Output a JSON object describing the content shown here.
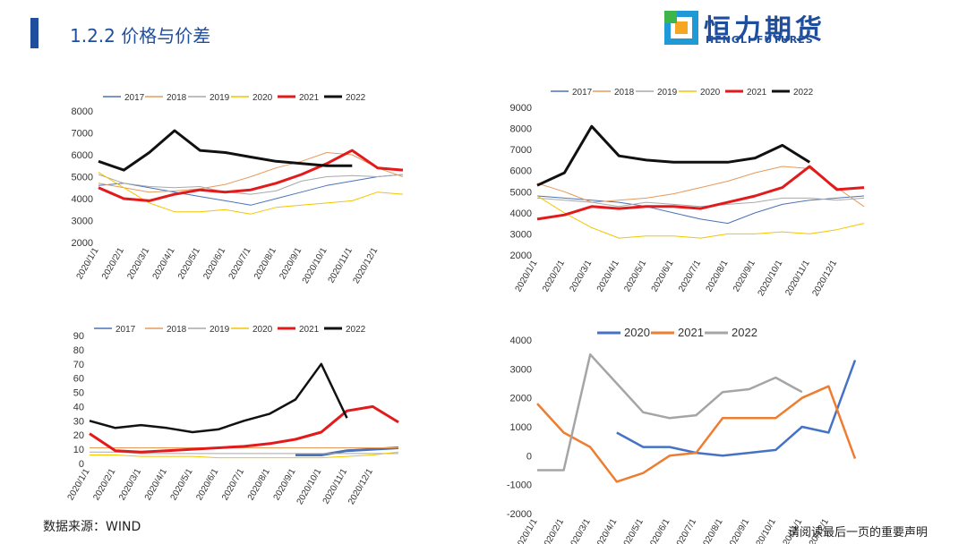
{
  "header": {
    "title": "1.2.2 价格与价差",
    "logo_text": "恒力期货",
    "logo_sub": "HENGLI FUTURES"
  },
  "footer": {
    "source": "数据来源：WIND",
    "disclaimer": "请阅读最后一页的重要声明"
  },
  "colors": {
    "2017": "#4a72b8",
    "2018": "#e69a5c",
    "2019": "#a9a9a9",
    "2020": "#f2c500",
    "2021": "#e31a1c",
    "2022": "#111111",
    "spread_2020": "#4472c4",
    "spread_2021": "#ed7d31",
    "spread_2022": "#a5a5a5"
  },
  "x_ticks": [
    "2020/1/1",
    "2020/2/1",
    "2020/3/1",
    "2020/4/1",
    "2020/5/1",
    "2020/6/1",
    "2020/7/1",
    "2020/8/1",
    "2020/9/1",
    "2020/10/1",
    "2020/11/1",
    "2020/12/1"
  ],
  "chart_data": [
    {
      "type": "line",
      "legend": [
        "2017",
        "2018",
        "2019",
        "2020",
        "2021",
        "2022"
      ],
      "legend_position": "top",
      "ylim": [
        2000,
        8000
      ],
      "yticks": [
        2000,
        3000,
        4000,
        5000,
        6000,
        7000,
        8000
      ],
      "x": [
        0,
        1,
        2,
        3,
        4,
        5,
        6,
        7,
        8,
        9,
        10,
        11,
        12
      ],
      "series": [
        {
          "name": "2017",
          "values": [
            4600,
            4700,
            4500,
            4300,
            4100,
            3900,
            3700,
            4000,
            4300,
            4600,
            4800,
            5000,
            5100
          ]
        },
        {
          "name": "2018",
          "values": [
            4700,
            4500,
            4300,
            4350,
            4450,
            4650,
            5000,
            5400,
            5700,
            6100,
            6000,
            5400,
            5000
          ]
        },
        {
          "name": "2019",
          "values": [
            5100,
            4700,
            4550,
            4500,
            4550,
            4300,
            4200,
            4350,
            4800,
            5000,
            5050,
            5000,
            5100
          ]
        },
        {
          "name": "2020",
          "values": [
            5200,
            4500,
            3800,
            3400,
            3400,
            3500,
            3300,
            3600,
            3700,
            3800,
            3900,
            4300,
            4200
          ]
        },
        {
          "name": "2021",
          "values": [
            4500,
            4000,
            3900,
            4200,
            4400,
            4300,
            4400,
            4700,
            5100,
            5600,
            6200,
            5400,
            5300
          ]
        },
        {
          "name": "2022",
          "values": [
            5700,
            5300,
            6100,
            7100,
            6200,
            6100,
            5900,
            5700,
            5600,
            5500,
            5500,
            null,
            null
          ]
        }
      ]
    },
    {
      "type": "line",
      "legend": [
        "2017",
        "2018",
        "2019",
        "2020",
        "2021",
        "2022"
      ],
      "legend_position": "top",
      "ylim": [
        2000,
        9000
      ],
      "yticks": [
        2000,
        3000,
        4000,
        5000,
        6000,
        7000,
        8000,
        9000
      ],
      "x": [
        0,
        1,
        2,
        3,
        4,
        5,
        6,
        7,
        8,
        9,
        10,
        11,
        12
      ],
      "series": [
        {
          "name": "2017",
          "values": [
            4800,
            4700,
            4600,
            4500,
            4300,
            4000,
            3700,
            3500,
            4000,
            4400,
            4600,
            4700,
            4800
          ]
        },
        {
          "name": "2018",
          "values": [
            5400,
            5000,
            4500,
            4600,
            4700,
            4900,
            5200,
            5500,
            5900,
            6200,
            6100,
            5200,
            4300
          ]
        },
        {
          "name": "2019",
          "values": [
            4700,
            4600,
            4500,
            4300,
            4500,
            4400,
            4300,
            4400,
            4500,
            4700,
            4700,
            4600,
            4700
          ]
        },
        {
          "name": "2020",
          "values": [
            4800,
            4000,
            3300,
            2800,
            2900,
            2900,
            2800,
            3000,
            3000,
            3100,
            3000,
            3200,
            3500
          ]
        },
        {
          "name": "2021",
          "values": [
            3700,
            3900,
            4300,
            4200,
            4300,
            4300,
            4200,
            4500,
            4800,
            5200,
            6200,
            5100,
            5200
          ]
        },
        {
          "name": "2022",
          "values": [
            5300,
            5900,
            8100,
            6700,
            6500,
            6400,
            6400,
            6400,
            6600,
            7200,
            6400,
            null,
            null
          ]
        }
      ]
    },
    {
      "type": "line",
      "legend": [
        "2017",
        "2018",
        "2019",
        "2020",
        "2021",
        "2022"
      ],
      "legend_position": "top",
      "ylim": [
        0,
        90
      ],
      "yticks": [
        0,
        10,
        20,
        30,
        40,
        50,
        60,
        70,
        80,
        90
      ],
      "x": [
        0,
        1,
        2,
        3,
        4,
        5,
        6,
        7,
        8,
        9,
        10,
        11,
        12
      ],
      "series": [
        {
          "name": "2017",
          "values": [
            null,
            null,
            null,
            null,
            null,
            null,
            null,
            null,
            6,
            6,
            9,
            10,
            11
          ]
        },
        {
          "name": "2018",
          "values": [
            11,
            11,
            11,
            11,
            11,
            11,
            11,
            11,
            11,
            11,
            11,
            11,
            11
          ]
        },
        {
          "name": "2019",
          "values": [
            8,
            8,
            7,
            7,
            7,
            7,
            7,
            7,
            7,
            7,
            7,
            7,
            7
          ]
        },
        {
          "name": "2020",
          "values": [
            6,
            6,
            5,
            5,
            5,
            4,
            4,
            4,
            4,
            4,
            5,
            6,
            8
          ]
        },
        {
          "name": "2021",
          "values": [
            21,
            9,
            8,
            9,
            10,
            11,
            12,
            14,
            17,
            22,
            37,
            40,
            29
          ]
        },
        {
          "name": "2022",
          "values": [
            30,
            25,
            27,
            25,
            22,
            24,
            30,
            35,
            45,
            70,
            32,
            null,
            null
          ]
        }
      ]
    },
    {
      "type": "line",
      "legend": [
        "2020",
        "2021",
        "2022"
      ],
      "legend_position": "top",
      "ylim": [
        -2000,
        4000
      ],
      "yticks": [
        -2000,
        -1000,
        0,
        1000,
        2000,
        3000,
        4000
      ],
      "x": [
        0,
        1,
        2,
        3,
        4,
        5,
        6,
        7,
        8,
        9,
        10,
        11,
        12
      ],
      "series": [
        {
          "name": "2020",
          "values": [
            null,
            null,
            null,
            800,
            300,
            300,
            100,
            0,
            100,
            200,
            1000,
            800,
            3300
          ]
        },
        {
          "name": "2021",
          "values": [
            1800,
            800,
            300,
            -900,
            -600,
            0,
            100,
            1300,
            1300,
            1300,
            2000,
            2400,
            -100
          ]
        },
        {
          "name": "2022",
          "values": [
            -500,
            -500,
            3500,
            2500,
            1500,
            1300,
            1400,
            2200,
            2300,
            2700,
            2200,
            null,
            null
          ]
        }
      ]
    }
  ]
}
